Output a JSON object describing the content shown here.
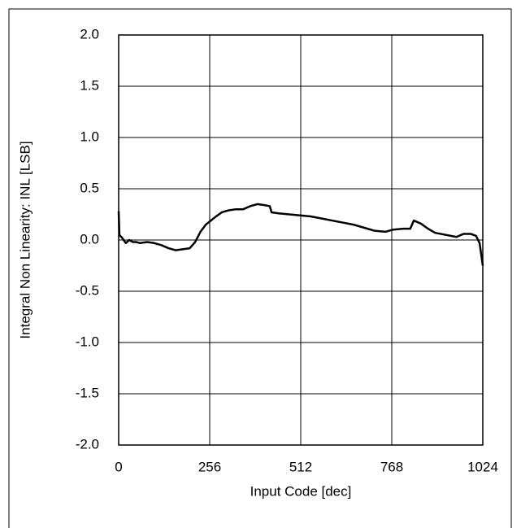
{
  "chart_data": {
    "type": "line",
    "x_label": "Input Code [dec]",
    "y_label": "Integral Non Linearity: INL [LSB]",
    "x": [
      0,
      2,
      10,
      20,
      30,
      40,
      50,
      60,
      80,
      100,
      120,
      140,
      160,
      180,
      200,
      215,
      230,
      245,
      256,
      270,
      290,
      310,
      330,
      350,
      370,
      390,
      410,
      425,
      430,
      450,
      480,
      510,
      540,
      570,
      600,
      630,
      660,
      690,
      720,
      750,
      770,
      800,
      820,
      830,
      850,
      870,
      890,
      920,
      950,
      970,
      990,
      1005,
      1015,
      1024
    ],
    "series": [
      {
        "name": "INL",
        "color": "#000000",
        "values": [
          0.28,
          0.05,
          0.02,
          -0.03,
          0.0,
          -0.02,
          -0.02,
          -0.03,
          -0.02,
          -0.03,
          -0.05,
          -0.08,
          -0.1,
          -0.09,
          -0.08,
          -0.02,
          0.08,
          0.15,
          0.18,
          0.22,
          0.27,
          0.29,
          0.3,
          0.3,
          0.33,
          0.35,
          0.34,
          0.33,
          0.27,
          0.26,
          0.25,
          0.24,
          0.23,
          0.21,
          0.19,
          0.17,
          0.15,
          0.12,
          0.09,
          0.08,
          0.1,
          0.11,
          0.11,
          0.19,
          0.16,
          0.11,
          0.07,
          0.05,
          0.03,
          0.06,
          0.06,
          0.04,
          -0.03,
          -0.25
        ]
      }
    ],
    "xlim": [
      0,
      1024
    ],
    "xticks": [
      0,
      256,
      512,
      768,
      1024
    ],
    "ylim": [
      -2,
      2
    ],
    "yticks": [
      {
        "value": -2,
        "label": "-2.0"
      },
      {
        "value": -1.5,
        "label": "-1.5"
      },
      {
        "value": -1,
        "label": "-1.0"
      },
      {
        "value": -0.5,
        "label": "-0.5"
      },
      {
        "value": 0,
        "label": "0.0"
      },
      {
        "value": 0.5,
        "label": "0.5"
      },
      {
        "value": 1,
        "label": "1.0"
      },
      {
        "value": 1.5,
        "label": "1.5"
      },
      {
        "value": 2,
        "label": "2.0"
      }
    ],
    "grid": true
  }
}
